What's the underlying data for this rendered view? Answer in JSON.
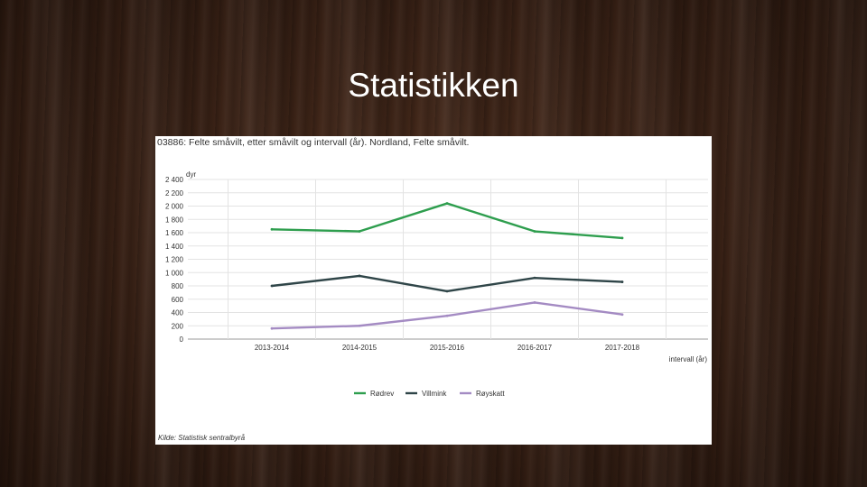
{
  "slide": {
    "title": "Statistikken"
  },
  "chart_data": {
    "type": "line",
    "title": "03886: Felte småvilt, etter småvilt og intervall (år). Nordland, Felte småvilt.",
    "ylabel": "dyr",
    "xlabel": "intervall (år)",
    "ylim": [
      0,
      2400
    ],
    "yticks": [
      0,
      200,
      400,
      600,
      800,
      1000,
      1200,
      1400,
      1600,
      1800,
      2000,
      2200,
      2400
    ],
    "ytick_labels": [
      "0",
      "200",
      "400",
      "600",
      "800",
      "1 000",
      "1 200",
      "1 400",
      "1 600",
      "1 800",
      "2 000",
      "2 200",
      "2 400"
    ],
    "categories": [
      "2013-2014",
      "2014-2015",
      "2015-2016",
      "2016-2017",
      "2017-2018"
    ],
    "series": [
      {
        "name": "Rødrev",
        "color": "#2e9e4e",
        "values": [
          1650,
          1620,
          2040,
          1620,
          1520
        ]
      },
      {
        "name": "Villmink",
        "color": "#2f4548",
        "values": [
          800,
          950,
          720,
          920,
          860
        ]
      },
      {
        "name": "Røyskatt",
        "color": "#a48bc3",
        "values": [
          160,
          200,
          350,
          550,
          370
        ]
      }
    ],
    "grid": true,
    "legend": "bottom",
    "source": "Kilde:  Statistisk sentralbyrå"
  }
}
